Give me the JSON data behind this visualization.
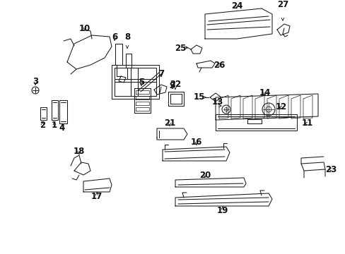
{
  "background_color": "#ffffff",
  "fig_width": 4.89,
  "fig_height": 3.6,
  "dpi": 100,
  "line_color": "#1a1a1a",
  "label_color": "#111111",
  "label_fontsize": 8.5,
  "lw": 0.75
}
